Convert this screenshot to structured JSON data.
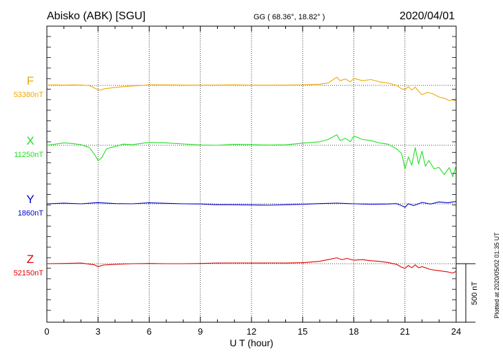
{
  "header": {
    "station": "Abisko (ABK)  [SGU]",
    "coords": "GG ( 68.36°,  18.82° )",
    "date": "2020/04/01"
  },
  "plotted_note": "Plotted at 2020/05/02 01:35 UT",
  "scale_bar": {
    "label": "500 nT",
    "value_nT": 500
  },
  "colors": {
    "F": "#f0a800",
    "X": "#20e020",
    "Y": "#0000d0",
    "Z": "#e00000",
    "axis": "#000000"
  },
  "chart_data": {
    "type": "line",
    "xlabel": "U T (hour)",
    "xlim": [
      0,
      24
    ],
    "xticks": [
      0,
      3,
      6,
      9,
      12,
      15,
      18,
      21,
      24
    ],
    "grid": true,
    "series": [
      {
        "key": "F",
        "name": "F",
        "baseline_label": "53380nT",
        "baseline": 53380,
        "points": [
          [
            0,
            53382
          ],
          [
            0.5,
            53384
          ],
          [
            1,
            53382
          ],
          [
            1.5,
            53384
          ],
          [
            2,
            53383
          ],
          [
            2.5,
            53378
          ],
          [
            2.9,
            53350
          ],
          [
            3.1,
            53338
          ],
          [
            3.4,
            53352
          ],
          [
            4,
            53362
          ],
          [
            4.5,
            53370
          ],
          [
            5,
            53375
          ],
          [
            5.5,
            53378
          ],
          [
            6,
            53385
          ],
          [
            7,
            53384
          ],
          [
            8,
            53383
          ],
          [
            9,
            53382
          ],
          [
            10,
            53383
          ],
          [
            11,
            53384
          ],
          [
            12,
            53382
          ],
          [
            13,
            53382
          ],
          [
            14,
            53383
          ],
          [
            15,
            53384
          ],
          [
            16,
            53390
          ],
          [
            16.5,
            53400
          ],
          [
            16.8,
            53430
          ],
          [
            17,
            53450
          ],
          [
            17.2,
            53420
          ],
          [
            17.5,
            53435
          ],
          [
            17.8,
            53410
          ],
          [
            18,
            53440
          ],
          [
            18.5,
            53420
          ],
          [
            19,
            53430
          ],
          [
            19.5,
            53410
          ],
          [
            20,
            53400
          ],
          [
            20.5,
            53380
          ],
          [
            20.8,
            53350
          ],
          [
            21,
            53345
          ],
          [
            21.2,
            53370
          ],
          [
            21.4,
            53340
          ],
          [
            21.6,
            53365
          ],
          [
            21.8,
            53330
          ],
          [
            22,
            53300
          ],
          [
            22.3,
            53320
          ],
          [
            22.6,
            53310
          ],
          [
            23,
            53280
          ],
          [
            23.3,
            53270
          ],
          [
            23.6,
            53250
          ],
          [
            23.8,
            53260
          ],
          [
            24,
            53240
          ]
        ]
      },
      {
        "key": "X",
        "name": "X",
        "baseline_label": "11250nT",
        "baseline": 11250,
        "points": [
          [
            0,
            11250
          ],
          [
            0.5,
            11260
          ],
          [
            1,
            11270
          ],
          [
            1.5,
            11265
          ],
          [
            2,
            11255
          ],
          [
            2.5,
            11230
          ],
          [
            2.8,
            11170
          ],
          [
            3,
            11120
          ],
          [
            3.2,
            11140
          ],
          [
            3.5,
            11220
          ],
          [
            4,
            11240
          ],
          [
            4.5,
            11260
          ],
          [
            5,
            11255
          ],
          [
            5.5,
            11265
          ],
          [
            6,
            11275
          ],
          [
            7,
            11270
          ],
          [
            8,
            11262
          ],
          [
            9,
            11252
          ],
          [
            10,
            11250
          ],
          [
            11,
            11258
          ],
          [
            12,
            11255
          ],
          [
            13,
            11252
          ],
          [
            14,
            11254
          ],
          [
            15,
            11268
          ],
          [
            16,
            11280
          ],
          [
            16.5,
            11300
          ],
          [
            17,
            11340
          ],
          [
            17.2,
            11290
          ],
          [
            17.5,
            11310
          ],
          [
            17.8,
            11280
          ],
          [
            18,
            11330
          ],
          [
            18.5,
            11300
          ],
          [
            19,
            11290
          ],
          [
            19.5,
            11270
          ],
          [
            20,
            11260
          ],
          [
            20.5,
            11220
          ],
          [
            20.8,
            11180
          ],
          [
            21,
            11050
          ],
          [
            21.2,
            11150
          ],
          [
            21.4,
            11080
          ],
          [
            21.6,
            11230
          ],
          [
            21.8,
            11090
          ],
          [
            22,
            11200
          ],
          [
            22.2,
            11070
          ],
          [
            22.4,
            11120
          ],
          [
            22.7,
            11050
          ],
          [
            23,
            11060
          ],
          [
            23.3,
            11000
          ],
          [
            23.6,
            11060
          ],
          [
            23.8,
            10980
          ],
          [
            24,
            11080
          ]
        ]
      },
      {
        "key": "Y",
        "name": "Y",
        "baseline_label": "1860nT",
        "baseline": 1860,
        "points": [
          [
            0,
            1860
          ],
          [
            1,
            1865
          ],
          [
            2,
            1860
          ],
          [
            3,
            1870
          ],
          [
            4,
            1862
          ],
          [
            5,
            1860
          ],
          [
            6,
            1868
          ],
          [
            7,
            1864
          ],
          [
            8,
            1860
          ],
          [
            9,
            1858
          ],
          [
            10,
            1852
          ],
          [
            11,
            1852
          ],
          [
            12,
            1850
          ],
          [
            13,
            1848
          ],
          [
            14,
            1852
          ],
          [
            15,
            1856
          ],
          [
            16,
            1862
          ],
          [
            17,
            1866
          ],
          [
            18,
            1860
          ],
          [
            19,
            1856
          ],
          [
            20,
            1858
          ],
          [
            20.5,
            1862
          ],
          [
            20.8,
            1845
          ],
          [
            21,
            1830
          ],
          [
            21.2,
            1860
          ],
          [
            21.5,
            1845
          ],
          [
            21.8,
            1860
          ],
          [
            22,
            1872
          ],
          [
            22.5,
            1858
          ],
          [
            23,
            1876
          ],
          [
            23.5,
            1868
          ],
          [
            24,
            1880
          ]
        ]
      },
      {
        "key": "Z",
        "name": "Z",
        "baseline_label": "52150nT",
        "baseline": 52150,
        "points": [
          [
            0,
            52150
          ],
          [
            1,
            52152
          ],
          [
            2,
            52155
          ],
          [
            2.8,
            52140
          ],
          [
            3,
            52125
          ],
          [
            3.3,
            52138
          ],
          [
            4,
            52145
          ],
          [
            5,
            52150
          ],
          [
            6,
            52152
          ],
          [
            7,
            52150
          ],
          [
            8,
            52150
          ],
          [
            9,
            52152
          ],
          [
            10,
            52155
          ],
          [
            11,
            52156
          ],
          [
            12,
            52155
          ],
          [
            13,
            52156
          ],
          [
            14,
            52155
          ],
          [
            15,
            52158
          ],
          [
            16,
            52170
          ],
          [
            16.5,
            52185
          ],
          [
            17,
            52200
          ],
          [
            17.3,
            52185
          ],
          [
            17.6,
            52195
          ],
          [
            18,
            52180
          ],
          [
            18.5,
            52185
          ],
          [
            19,
            52175
          ],
          [
            19.5,
            52170
          ],
          [
            20,
            52160
          ],
          [
            20.5,
            52145
          ],
          [
            20.8,
            52120
          ],
          [
            21,
            52110
          ],
          [
            21.2,
            52135
          ],
          [
            21.4,
            52115
          ],
          [
            21.6,
            52140
          ],
          [
            21.8,
            52115
          ],
          [
            22,
            52125
          ],
          [
            22.5,
            52100
          ],
          [
            23,
            52090
          ],
          [
            23.5,
            52080
          ],
          [
            23.8,
            52070
          ],
          [
            24,
            52085
          ]
        ]
      }
    ]
  }
}
